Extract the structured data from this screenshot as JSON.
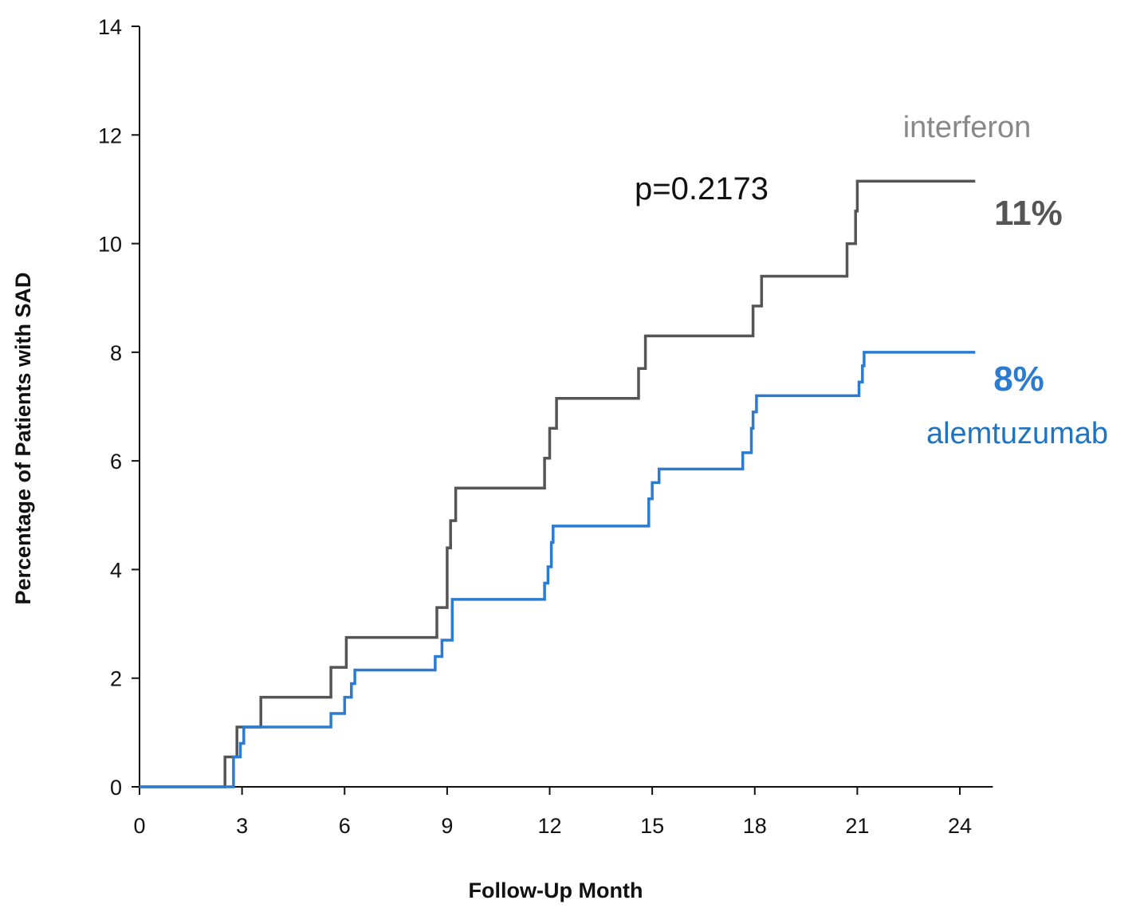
{
  "chart_data": {
    "type": "line",
    "step": true,
    "title": "",
    "xlabel": "Follow-Up Month",
    "ylabel": "Percentage of Patients with SAD",
    "xlim": [
      0,
      24.5
    ],
    "ylim": [
      0,
      14
    ],
    "xticks": [
      0,
      3,
      6,
      9,
      12,
      15,
      18,
      21,
      24
    ],
    "yticks": [
      0,
      2,
      4,
      6,
      8,
      10,
      12,
      14
    ],
    "grid": false,
    "annotation": "p=0.2173",
    "series": [
      {
        "name": "interferon",
        "color": "#555555",
        "label_color": "#888888",
        "end_label": "11%",
        "points": [
          [
            0,
            0
          ],
          [
            2.5,
            0
          ],
          [
            2.5,
            0.55
          ],
          [
            2.85,
            0.55
          ],
          [
            2.85,
            1.1
          ],
          [
            3.55,
            1.1
          ],
          [
            3.55,
            1.65
          ],
          [
            5.6,
            1.65
          ],
          [
            5.6,
            2.2
          ],
          [
            6.05,
            2.2
          ],
          [
            6.05,
            2.75
          ],
          [
            8.7,
            2.75
          ],
          [
            8.7,
            3.3
          ],
          [
            9.0,
            3.3
          ],
          [
            9.0,
            4.4
          ],
          [
            9.1,
            4.4
          ],
          [
            9.1,
            4.9
          ],
          [
            9.25,
            4.9
          ],
          [
            9.25,
            5.5
          ],
          [
            11.85,
            5.5
          ],
          [
            11.85,
            6.05
          ],
          [
            12.0,
            6.05
          ],
          [
            12.0,
            6.6
          ],
          [
            12.2,
            6.6
          ],
          [
            12.2,
            7.15
          ],
          [
            14.6,
            7.15
          ],
          [
            14.6,
            7.7
          ],
          [
            14.8,
            7.7
          ],
          [
            14.8,
            8.3
          ],
          [
            17.95,
            8.3
          ],
          [
            17.95,
            8.85
          ],
          [
            18.2,
            8.85
          ],
          [
            18.2,
            9.4
          ],
          [
            20.7,
            9.4
          ],
          [
            20.7,
            10.0
          ],
          [
            20.95,
            10.0
          ],
          [
            20.95,
            10.6
          ],
          [
            21.0,
            10.6
          ],
          [
            21.0,
            11.15
          ],
          [
            24.45,
            11.15
          ]
        ]
      },
      {
        "name": "alemtuzumab",
        "color": "#2b7bd0",
        "label_color": "#1f74c2",
        "end_label": "8%",
        "points": [
          [
            0,
            0
          ],
          [
            2.75,
            0
          ],
          [
            2.75,
            0.55
          ],
          [
            2.95,
            0.55
          ],
          [
            2.95,
            0.8
          ],
          [
            3.05,
            0.8
          ],
          [
            3.05,
            1.1
          ],
          [
            5.6,
            1.1
          ],
          [
            5.6,
            1.35
          ],
          [
            6.0,
            1.35
          ],
          [
            6.0,
            1.65
          ],
          [
            6.2,
            1.65
          ],
          [
            6.2,
            1.9
          ],
          [
            6.3,
            1.9
          ],
          [
            6.3,
            2.15
          ],
          [
            8.65,
            2.15
          ],
          [
            8.65,
            2.4
          ],
          [
            8.85,
            2.4
          ],
          [
            8.85,
            2.7
          ],
          [
            9.15,
            2.7
          ],
          [
            9.15,
            3.45
          ],
          [
            11.85,
            3.45
          ],
          [
            11.85,
            3.75
          ],
          [
            11.95,
            3.75
          ],
          [
            11.95,
            4.05
          ],
          [
            12.05,
            4.05
          ],
          [
            12.05,
            4.5
          ],
          [
            12.1,
            4.5
          ],
          [
            12.1,
            4.8
          ],
          [
            14.9,
            4.8
          ],
          [
            14.9,
            5.3
          ],
          [
            15.0,
            5.3
          ],
          [
            15.0,
            5.6
          ],
          [
            15.2,
            5.6
          ],
          [
            15.2,
            5.85
          ],
          [
            17.65,
            5.85
          ],
          [
            17.65,
            6.15
          ],
          [
            17.9,
            6.15
          ],
          [
            17.9,
            6.6
          ],
          [
            17.95,
            6.6
          ],
          [
            17.95,
            6.9
          ],
          [
            18.05,
            6.9
          ],
          [
            18.05,
            7.2
          ],
          [
            21.05,
            7.2
          ],
          [
            21.05,
            7.45
          ],
          [
            21.15,
            7.45
          ],
          [
            21.15,
            7.75
          ],
          [
            21.2,
            7.75
          ],
          [
            21.2,
            8.0
          ],
          [
            24.45,
            8.0
          ]
        ]
      }
    ]
  }
}
